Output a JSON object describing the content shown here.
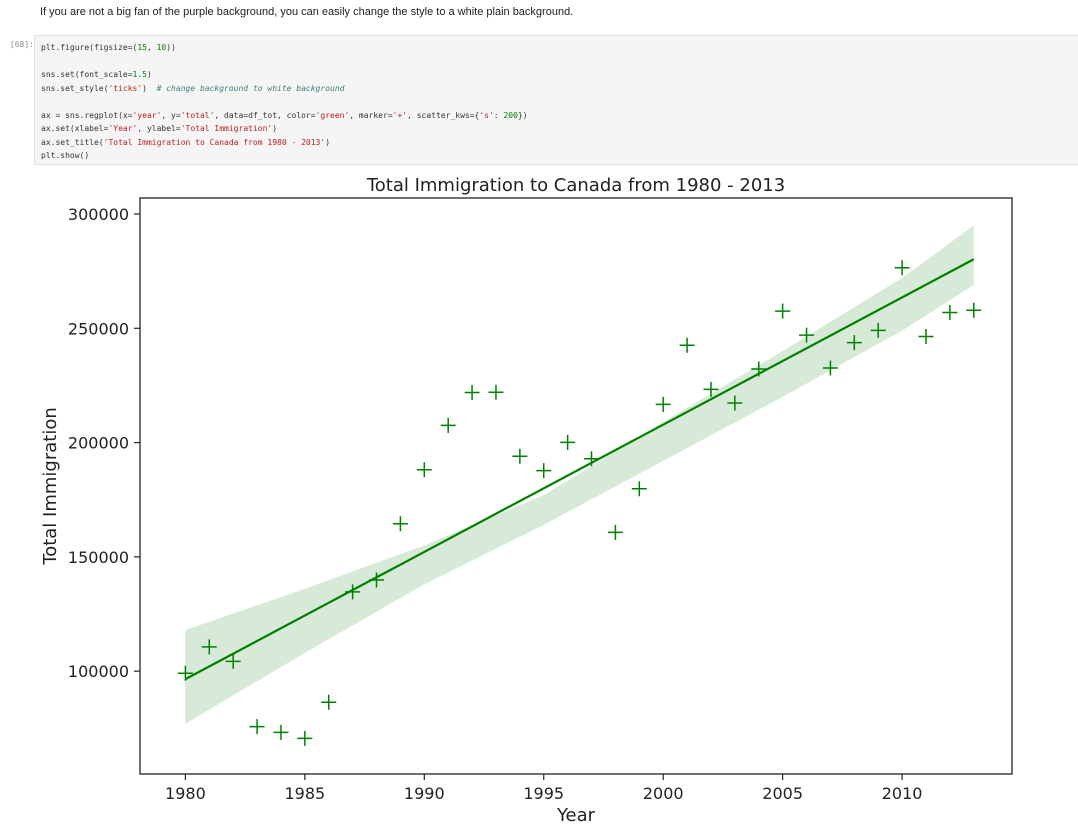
{
  "markdown": {
    "text": "If you are not a big fan of the purple background, you can easily change the style to a white plain background."
  },
  "cell": {
    "prompt": "[68]:",
    "code_lines": [
      [
        {
          "t": "plt.figure(figsize=("
        },
        {
          "t": "15",
          "c": "num"
        },
        {
          "t": ", "
        },
        {
          "t": "10",
          "c": "num"
        },
        {
          "t": "))"
        }
      ],
      [],
      [
        {
          "t": "sns.set(font_scale="
        },
        {
          "t": "1.5",
          "c": "num"
        },
        {
          "t": ")"
        }
      ],
      [
        {
          "t": "sns.set_style("
        },
        {
          "t": "'ticks'",
          "c": "str"
        },
        {
          "t": ")  "
        },
        {
          "t": "# change background to white background",
          "c": "cmt"
        }
      ],
      [],
      [
        {
          "t": "ax = sns.regplot(x="
        },
        {
          "t": "'year'",
          "c": "str"
        },
        {
          "t": ", y="
        },
        {
          "t": "'total'",
          "c": "str"
        },
        {
          "t": ", data=df_tot, color="
        },
        {
          "t": "'green'",
          "c": "str"
        },
        {
          "t": ", marker="
        },
        {
          "t": "'+'",
          "c": "str"
        },
        {
          "t": ", scatter_kws={"
        },
        {
          "t": "'s'",
          "c": "str"
        },
        {
          "t": ": "
        },
        {
          "t": "200",
          "c": "num"
        },
        {
          "t": "})"
        }
      ],
      [
        {
          "t": "ax.set(xlabel="
        },
        {
          "t": "'Year'",
          "c": "str"
        },
        {
          "t": ", ylabel="
        },
        {
          "t": "'Total Immigration'",
          "c": "str"
        },
        {
          "t": ")"
        }
      ],
      [
        {
          "t": "ax.set_title("
        },
        {
          "t": "'Total Immigration to Canada from 1980 - 2013'",
          "c": "str"
        },
        {
          "t": ")"
        }
      ],
      [
        {
          "t": "plt.show()"
        }
      ]
    ]
  },
  "chart_data": {
    "type": "scatter",
    "title": "Total Immigration to Canada from 1980 - 2013",
    "xlabel": "Year",
    "ylabel": "Total Immigration",
    "xlim": [
      1978.1,
      2014.6
    ],
    "ylim": [
      55000,
      307000
    ],
    "xticks": [
      1980,
      1985,
      1990,
      1995,
      2000,
      2005,
      2010
    ],
    "yticks": [
      100000,
      150000,
      200000,
      250000,
      300000
    ],
    "grid": false,
    "marker": "+",
    "color": "#008000",
    "band_color": "#d7ead7",
    "points": {
      "x": [
        1980,
        1981,
        1982,
        1983,
        1984,
        1985,
        1986,
        1987,
        1988,
        1989,
        1990,
        1991,
        1992,
        1993,
        1994,
        1995,
        1996,
        1997,
        1998,
        1999,
        2000,
        2001,
        2002,
        2003,
        2004,
        2005,
        2006,
        2007,
        2008,
        2009,
        2010,
        2011,
        2012,
        2013
      ],
      "y": [
        99100,
        110600,
        104300,
        75700,
        73200,
        70600,
        86400,
        134700,
        139900,
        164500,
        188100,
        207500,
        221900,
        222000,
        194000,
        187700,
        200100,
        192900,
        160700,
        179800,
        216700,
        242600,
        223300,
        217300,
        232200,
        257500,
        247000,
        232600,
        243700,
        249100,
        276500,
        246400,
        256900,
        257900
      ]
    },
    "regression": {
      "x": [
        1980,
        2013
      ],
      "y": [
        96500,
        280200
      ]
    },
    "confidence_band": {
      "x": [
        1980,
        1985,
        1990,
        1995,
        2000,
        2005,
        2010,
        2013
      ],
      "lower": [
        77000,
        108000,
        138000,
        164000,
        192000,
        220000,
        249000,
        269000
      ],
      "upper": [
        118000,
        136000,
        155000,
        177000,
        209000,
        240000,
        272000,
        295000
      ]
    }
  }
}
